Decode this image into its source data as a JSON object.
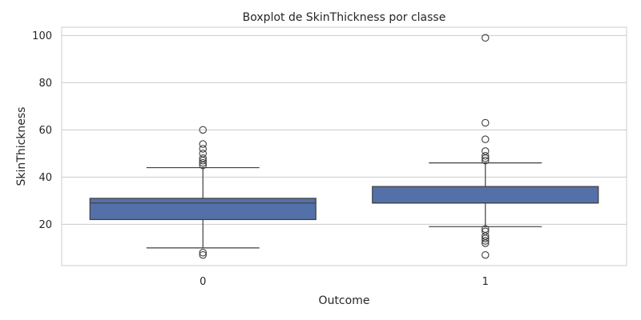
{
  "chart_data": {
    "type": "boxplot",
    "title": "Boxplot de SkinThickness por classe",
    "xlabel": "Outcome",
    "ylabel": "SkinThickness",
    "categories": [
      "0",
      "1"
    ],
    "ylim": [
      2.5,
      103.5
    ],
    "yticks": [
      20,
      40,
      60,
      80,
      100
    ],
    "grid": true,
    "box_color": "#5470a8",
    "line_color": "#3f3f3f",
    "boxes": [
      {
        "category": "0",
        "q1": 22,
        "median": 29,
        "q3": 31,
        "whisker_low": 10,
        "whisker_high": 44,
        "outliers": [
          7,
          8,
          45,
          46,
          47,
          48,
          50,
          52,
          54,
          60
        ]
      },
      {
        "category": "1",
        "q1": 29,
        "median": 29,
        "q3": 36,
        "whisker_low": 19,
        "whisker_high": 46,
        "outliers": [
          7,
          12,
          13,
          14,
          15,
          17,
          18,
          47,
          48,
          49,
          51,
          56,
          63,
          99
        ]
      }
    ]
  }
}
